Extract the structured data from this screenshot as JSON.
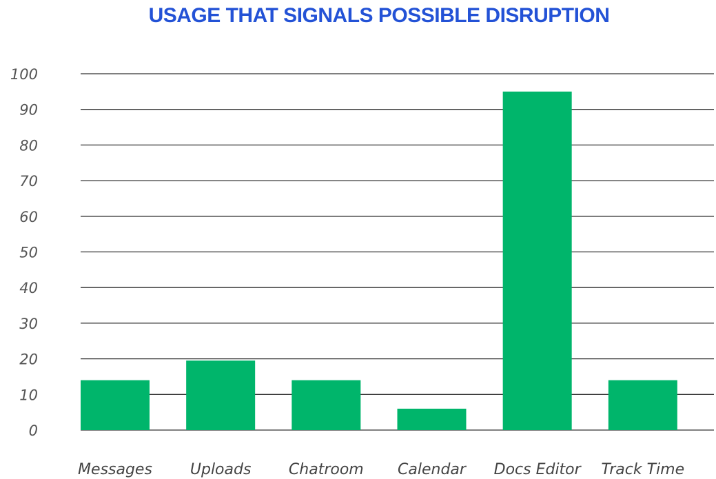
{
  "chart_data": {
    "type": "bar",
    "title": "USAGE THAT SIGNALS POSSIBLE DISRUPTION",
    "xlabel": "",
    "ylabel": "",
    "categories": [
      "Messages",
      "Uploads",
      "Chatroom",
      "Calendar",
      "Docs Editor",
      "Track Time"
    ],
    "values": [
      14,
      19.5,
      14,
      6,
      95,
      14
    ],
    "ylim": [
      0,
      100
    ],
    "yticks": [
      0,
      10,
      20,
      30,
      40,
      50,
      60,
      70,
      80,
      90,
      100
    ],
    "grid": true,
    "legend": "none",
    "colors": {
      "bar": "#00b56b",
      "title": "#2352d6",
      "grid": "#333333"
    }
  }
}
